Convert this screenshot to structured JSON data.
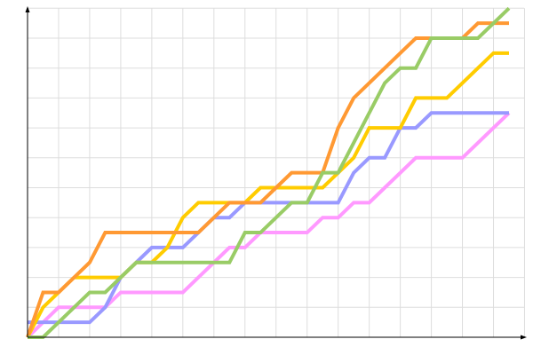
{
  "chart_data": {
    "type": "line",
    "title": "",
    "xlabel": "",
    "ylabel": "",
    "xlim": [
      0,
      31
    ],
    "ylim": [
      0,
      22
    ],
    "grid": true,
    "x_grid_step": 2,
    "y_grid_step": 2,
    "x": [
      0,
      1,
      2,
      3,
      4,
      5,
      6,
      7,
      8,
      9,
      10,
      11,
      12,
      13,
      14,
      15,
      16,
      17,
      18,
      19,
      20,
      21,
      22,
      23,
      24,
      25,
      26,
      27,
      28,
      29,
      30,
      31
    ],
    "series": [
      {
        "color": "#ff99ff",
        "values": [
          0,
          1,
          2,
          2,
          2,
          2,
          3,
          3,
          3,
          3,
          3,
          4,
          5,
          6,
          6,
          7,
          7,
          7,
          7,
          8,
          8,
          9,
          9,
          10,
          11,
          12,
          12,
          12,
          12,
          13,
          14,
          15
        ]
      },
      {
        "color": "#9999ff",
        "values": [
          1,
          1,
          1,
          1,
          1,
          2,
          4,
          5,
          6,
          6,
          6,
          7,
          8,
          8,
          9,
          9,
          9,
          9,
          9,
          9,
          9,
          11,
          12,
          12,
          14,
          14,
          15,
          15,
          15,
          15,
          15,
          15
        ]
      },
      {
        "color": "#ffcc00",
        "values": [
          0,
          2,
          3,
          4,
          4,
          4,
          4,
          5,
          5,
          6,
          8,
          9,
          9,
          9,
          9,
          10,
          10,
          10,
          10,
          10,
          11,
          12,
          14,
          14,
          14,
          16,
          16,
          16,
          17,
          18,
          19,
          19
        ]
      },
      {
        "color": "#ff9933",
        "values": [
          0,
          3,
          3,
          4,
          5,
          7,
          7,
          7,
          7,
          7,
          7,
          7,
          8,
          9,
          9,
          9,
          10,
          11,
          11,
          11,
          14,
          16,
          17,
          18,
          19,
          20,
          20,
          20,
          20,
          21,
          21,
          21
        ]
      },
      {
        "color": "#99cc66",
        "values": [
          0,
          0,
          1,
          2,
          3,
          3,
          4,
          5,
          5,
          5,
          5,
          5,
          5,
          5,
          7,
          7,
          8,
          9,
          9,
          11,
          11,
          13,
          15,
          17,
          18,
          18,
          20,
          20,
          20,
          20,
          21,
          22
        ]
      }
    ]
  }
}
